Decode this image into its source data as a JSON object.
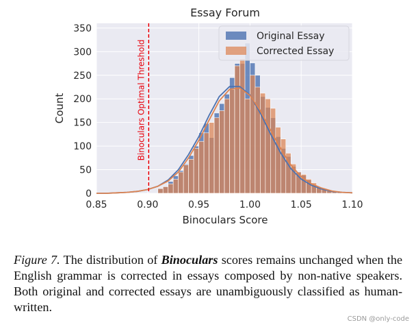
{
  "chart_data": {
    "type": "bar",
    "title": "Essay Forum",
    "xlabel": "Binoculars Score",
    "ylabel": "Count",
    "xlim": [
      0.85,
      1.1
    ],
    "ylim": [
      0,
      360
    ],
    "xticks": [
      "0.85",
      "0.90",
      "0.95",
      "1.00",
      "1.05",
      "1.10"
    ],
    "yticks": [
      "0",
      "50",
      "100",
      "150",
      "200",
      "250",
      "300",
      "350"
    ],
    "grid": true,
    "legend_position": "top-right",
    "bin_width": 0.005,
    "x_start": 0.91,
    "series": [
      {
        "name": "Original Essay",
        "color": "#4c72b0",
        "values": [
          10,
          14,
          25,
          37,
          48,
          62,
          80,
          100,
          128,
          148,
          118,
          170,
          190,
          210,
          245,
          275,
          275,
          318,
          276,
          250,
          205,
          182,
          160,
          120,
          95,
          78,
          57,
          46,
          38,
          28,
          18,
          12,
          8,
          5,
          4,
          2,
          1
        ]
      },
      {
        "name": "Corrected Essay",
        "color": "#dd8452",
        "values": [
          10,
          14,
          20,
          30,
          45,
          60,
          72,
          95,
          110,
          128,
          150,
          160,
          175,
          200,
          220,
          270,
          285,
          200,
          250,
          225,
          212,
          200,
          180,
          140,
          115,
          85,
          62,
          45,
          40,
          30,
          22,
          12,
          9,
          6,
          5,
          2,
          1
        ]
      }
    ],
    "kde": {
      "x": [
        0.85,
        0.86,
        0.87,
        0.88,
        0.89,
        0.9,
        0.91,
        0.92,
        0.93,
        0.94,
        0.95,
        0.96,
        0.97,
        0.98,
        0.99,
        1.0,
        1.01,
        1.02,
        1.03,
        1.04,
        1.05,
        1.06,
        1.07,
        1.08,
        1.09,
        1.1
      ],
      "original": [
        0,
        0,
        1,
        2,
        4,
        8,
        15,
        28,
        50,
        82,
        120,
        165,
        205,
        226,
        226,
        208,
        170,
        126,
        85,
        52,
        30,
        17,
        9,
        4,
        2,
        1
      ],
      "corrected": [
        0,
        0,
        1,
        2,
        4,
        8,
        15,
        26,
        45,
        75,
        112,
        155,
        196,
        220,
        223,
        207,
        175,
        134,
        95,
        60,
        35,
        20,
        11,
        5,
        2,
        1
      ]
    },
    "threshold": {
      "x": 0.901,
      "label": "Binoculars Optimal Threshold",
      "color": "#e8000b"
    }
  },
  "caption": {
    "label": "Figure 7.",
    "part1": " The distribution of ",
    "emphasis": "Binoculars",
    "part2": " scores remains unchanged when the English grammar is corrected in essays composed by non-native speakers. Both original and corrected essays are unambiguously classified as human-written."
  },
  "watermark": "CSDN @only-code"
}
